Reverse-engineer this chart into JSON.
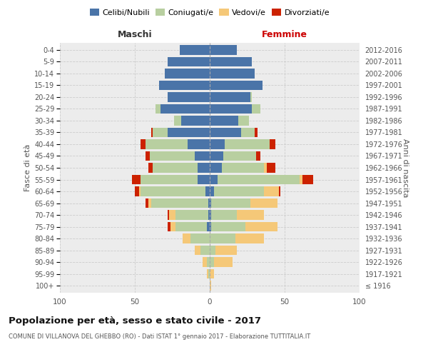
{
  "age_groups": [
    "100+",
    "95-99",
    "90-94",
    "85-89",
    "80-84",
    "75-79",
    "70-74",
    "65-69",
    "60-64",
    "55-59",
    "50-54",
    "45-49",
    "40-44",
    "35-39",
    "30-34",
    "25-29",
    "20-24",
    "15-19",
    "10-14",
    "5-9",
    "0-4"
  ],
  "birth_years": [
    "≤ 1916",
    "1917-1921",
    "1922-1926",
    "1927-1931",
    "1932-1936",
    "1937-1941",
    "1942-1946",
    "1947-1951",
    "1952-1956",
    "1957-1961",
    "1962-1966",
    "1967-1971",
    "1972-1976",
    "1977-1981",
    "1982-1986",
    "1987-1991",
    "1992-1996",
    "1997-2001",
    "2002-2006",
    "2007-2011",
    "2012-2016"
  ],
  "colors": {
    "celibi": "#4a74a8",
    "coniugati": "#b8cfa0",
    "vedovi": "#f5c878",
    "divorziati": "#cc2200"
  },
  "maschi": {
    "celibi": [
      0,
      0,
      0,
      0,
      0,
      2,
      1,
      1,
      3,
      8,
      8,
      10,
      15,
      28,
      19,
      33,
      28,
      34,
      30,
      28,
      20
    ],
    "coniugati": [
      0,
      1,
      2,
      6,
      13,
      21,
      22,
      38,
      43,
      38,
      30,
      30,
      28,
      10,
      5,
      3,
      0,
      0,
      0,
      0,
      0
    ],
    "vedovi": [
      0,
      1,
      3,
      4,
      5,
      3,
      4,
      2,
      1,
      0,
      0,
      0,
      0,
      0,
      0,
      0,
      0,
      0,
      0,
      0,
      0
    ],
    "divorziati": [
      0,
      0,
      0,
      0,
      0,
      2,
      1,
      2,
      3,
      6,
      3,
      3,
      3,
      1,
      0,
      0,
      0,
      0,
      0,
      0,
      0
    ]
  },
  "femmine": {
    "celibi": [
      0,
      0,
      0,
      0,
      0,
      1,
      1,
      1,
      3,
      5,
      8,
      9,
      10,
      21,
      19,
      28,
      27,
      35,
      30,
      28,
      18
    ],
    "coniugati": [
      0,
      0,
      3,
      4,
      17,
      23,
      17,
      26,
      33,
      55,
      28,
      22,
      30,
      9,
      7,
      6,
      1,
      0,
      0,
      0,
      0
    ],
    "vedovi": [
      1,
      3,
      12,
      14,
      19,
      21,
      18,
      18,
      10,
      2,
      2,
      0,
      0,
      0,
      0,
      0,
      0,
      0,
      0,
      0,
      0
    ],
    "divorziati": [
      0,
      0,
      0,
      0,
      0,
      0,
      0,
      0,
      1,
      7,
      6,
      3,
      4,
      2,
      0,
      0,
      0,
      0,
      0,
      0,
      0
    ]
  },
  "title": "Popolazione per età, sesso e stato civile - 2017",
  "subtitle": "COMUNE DI VILLANOVA DEL GHEBBO (RO) - Dati ISTAT 1° gennaio 2017 - Elaborazione TUTTITALIA.IT",
  "label_maschi": "Maschi",
  "label_femmine": "Femmine",
  "ylabel_left": "Fasce di età",
  "ylabel_right": "Anni di nascita",
  "xlim": 100,
  "legend_labels": [
    "Celibi/Nubili",
    "Coniugati/e",
    "Vedovi/e",
    "Divorziati/e"
  ],
  "bg_color": "#ececec",
  "grid_color": "#cccccc"
}
